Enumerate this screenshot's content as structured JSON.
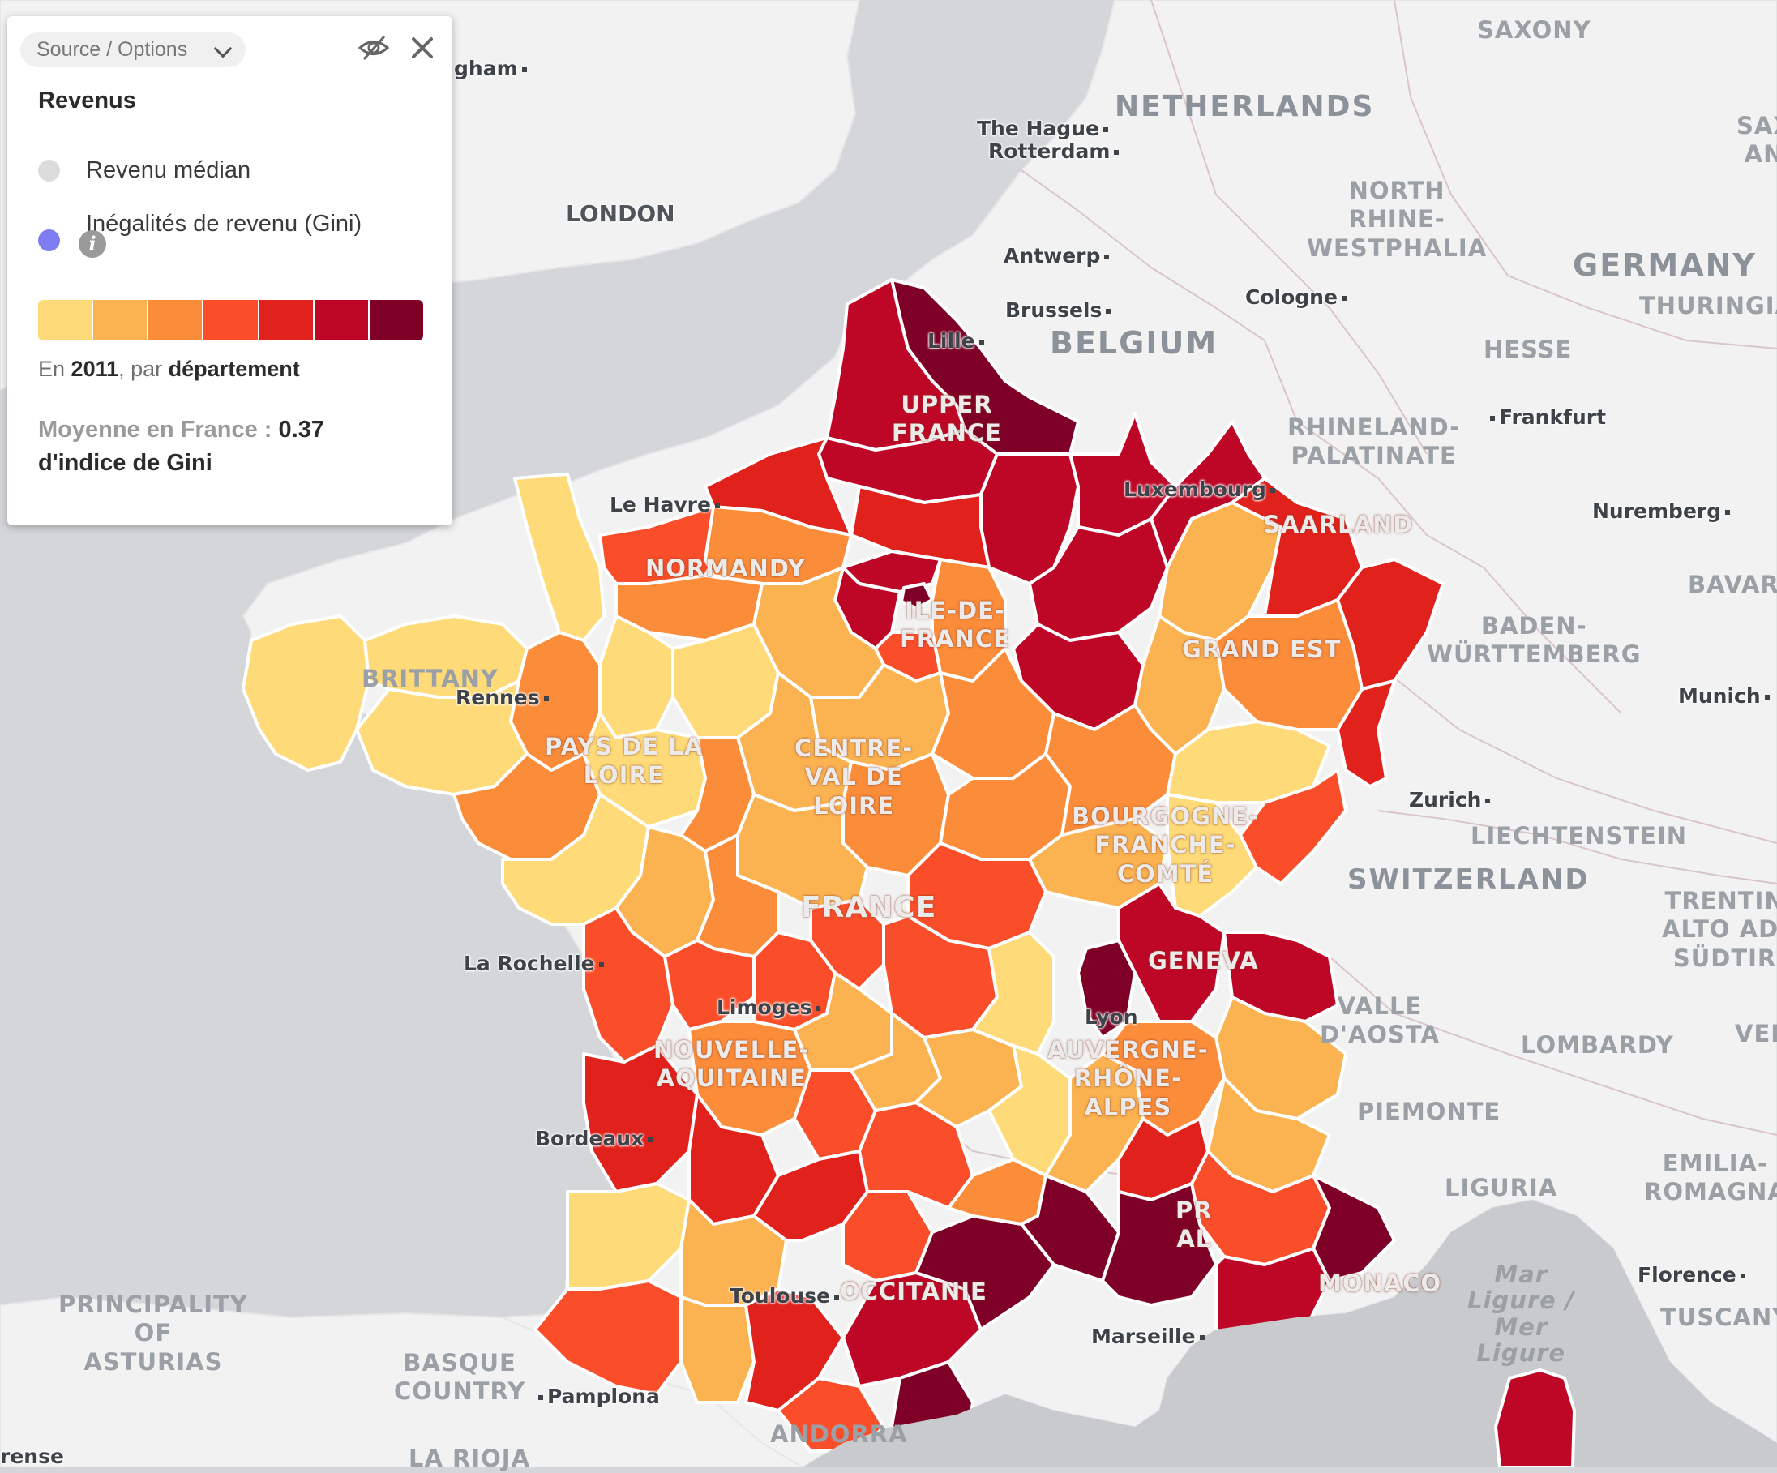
{
  "legend": {
    "source_button": "Source / Options",
    "title": "Revenus",
    "options": [
      {
        "label": "Revenu médian",
        "selected": false
      },
      {
        "label": "Inégalités de revenu (Gini)",
        "selected": true
      }
    ],
    "scale_colors": [
      "#fedb78",
      "#fbb251",
      "#fb8d3a",
      "#fa4e2a",
      "#e1211c",
      "#be0626",
      "#7f0026"
    ],
    "year_prefix": "En",
    "year": "2011",
    "year_mid": ", par",
    "unit": "département",
    "avg_label": "Moyenne en France :",
    "avg_value": "0.37",
    "avg_unit": "d'indice de Gini"
  },
  "map": {
    "countries": [
      "NETHERLANDS",
      "GERMANY",
      "BELGIUM",
      "SWITZERLAND",
      "LIECHTENSTEIN",
      "MONACO",
      "ANDORRA",
      "LONDON",
      "FRANCE"
    ],
    "regions": [
      "LOWER SAXONY",
      "NORTH RHINE-WESTPHALIA",
      "HESSE",
      "RHINELAND-PALATINATE",
      "SAARLAND",
      "THURINGIA",
      "BADEN-WÜRTTEMBERG",
      "BAVARIA",
      "TRENTINO-ALTO ADIGE/SÜDTIROL",
      "LOMBARDY",
      "PIEMONTE",
      "VALLE D'AOSTA",
      "LIGURIA",
      "EMILIA-ROMAGNA",
      "TUSCANY",
      "VENETO",
      "PRINCIPALITY OF ASTURIAS",
      "BASQUE COUNTRY",
      "LA RIOJA",
      "UPPER FRANCE",
      "NORMANDY",
      "ILE-DE-FRANCE",
      "GRAND EST",
      "BRITTANY",
      "PAYS DE LA LOIRE",
      "CENTRE-VAL DE LOIRE",
      "BOURGOGNE-FRANCHE-COMTÉ",
      "NOUVELLE-AQUITAINE",
      "AUVERGNE-RHÔNE-ALPES",
      "OCCITANIE",
      "PROVENCE-ALPES-CÔTE D'AZUR",
      "SAXONY-ANHALT"
    ],
    "cities": [
      "Birmingham",
      "The Hague",
      "Rotterdam",
      "Antwerp",
      "Brussels",
      "Cologne",
      "Lille",
      "Frankfurt",
      "Luxembourg",
      "Nuremberg",
      "Le Havre",
      "Rennes",
      "Munich",
      "Zurich",
      "La Rochelle",
      "Geneva",
      "Limoges",
      "Lyon",
      "Bordeaux",
      "Toulouse",
      "Marseille",
      "Florence",
      "Pamplona",
      "Orense"
    ],
    "sea": "Mar Ligure / Mer Ligure"
  }
}
